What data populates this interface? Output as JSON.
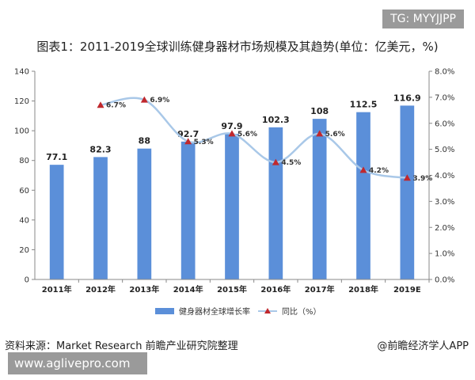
{
  "watermark_tag": "TG: MYYJJPP",
  "footer": {
    "source": "资料来源：Market Research 前瞻产业研究院整理",
    "brand": "@前瞻经济学人APP",
    "url": "www.aglivepro.com"
  },
  "chart_data": {
    "type": "bar",
    "title": "图表1：2011-2019全球训练健身器材市场规模及其趋势(单位：亿美元，%)",
    "categories": [
      "2011年",
      "2012年",
      "2013年",
      "2014年",
      "2015年",
      "2016年",
      "2017年",
      "2018年",
      "2019E"
    ],
    "series": [
      {
        "name": "健身器材全球增长率",
        "type": "bar",
        "axis": "left",
        "color": "#5b8fd9",
        "values": [
          77.1,
          82.3,
          88,
          92.7,
          97.9,
          102.3,
          108,
          112.5,
          116.9
        ],
        "labels": [
          "77.1",
          "82.3",
          "88",
          "92.7",
          "97.9",
          "102.3",
          "108",
          "112.5",
          "116.9"
        ]
      },
      {
        "name": "同比（%）",
        "type": "line",
        "axis": "right",
        "color": "#a9c8e8",
        "marker_color": "#c0282d",
        "values": [
          null,
          6.7,
          6.9,
          5.3,
          5.6,
          4.5,
          5.6,
          4.2,
          3.9
        ],
        "labels": [
          "",
          "6.7%",
          "6.9%",
          "5.3%",
          "5.6%",
          "4.5%",
          "5.6%",
          "4.2%",
          "3.9%"
        ]
      }
    ],
    "ylim": [
      0,
      140
    ],
    "yticks": [
      "0",
      "20",
      "40",
      "60",
      "80",
      "100",
      "120",
      "140"
    ],
    "y2lim": [
      0,
      8
    ],
    "y2ticks": [
      "0.0%",
      "1.0%",
      "2.0%",
      "3.0%",
      "4.0%",
      "5.0%",
      "6.0%",
      "7.0%",
      "8.0%"
    ],
    "legend_position": "bottom"
  }
}
